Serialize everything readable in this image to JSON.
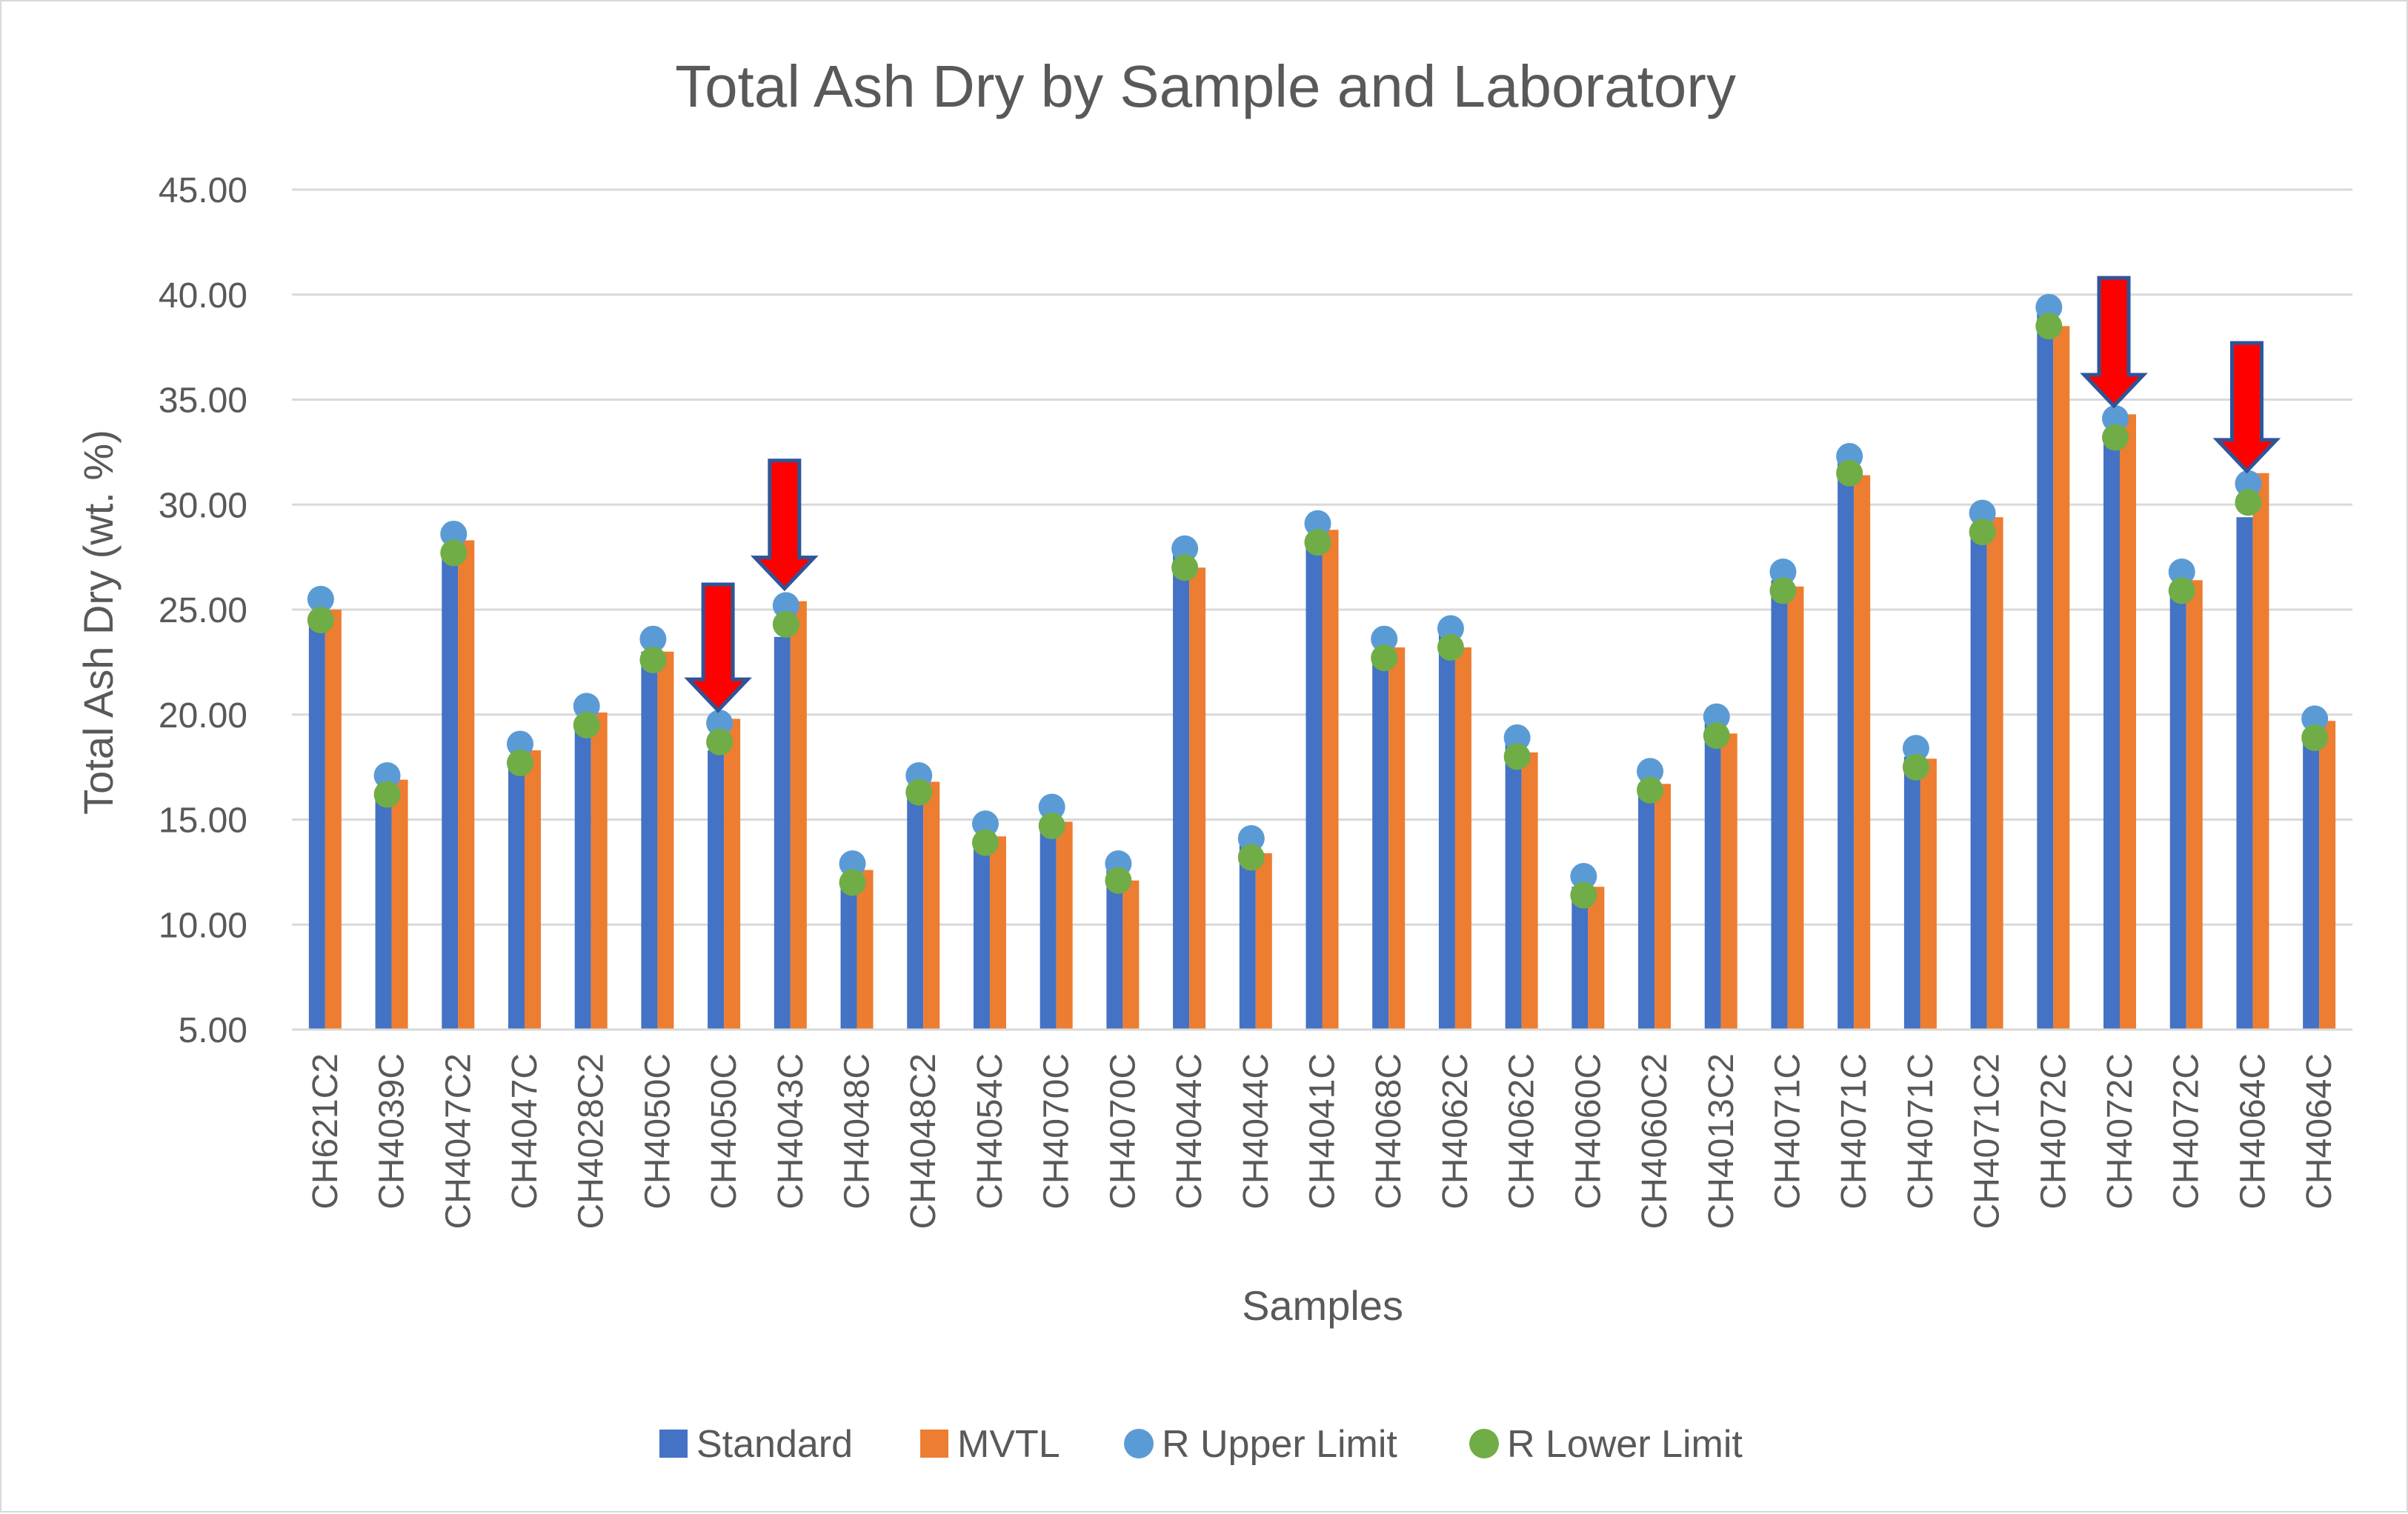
{
  "chart_data": {
    "type": "bar",
    "title": "Total Ash Dry by Sample and Laboratory",
    "xlabel": "Samples",
    "ylabel": "Total Ash Dry (wt. %)",
    "ylim": [
      5,
      45
    ],
    "y_ticks": [
      "5.00",
      "10.00",
      "15.00",
      "20.00",
      "25.00",
      "30.00",
      "35.00",
      "40.00",
      "45.00"
    ],
    "grid": true,
    "legend_position": "bottom",
    "categories": [
      "CH621C2",
      "CH4039C",
      "CH4047C2",
      "CH4047C",
      "CH4028C2",
      "CH4050C",
      "CH4050C",
      "CH4043C",
      "CH4048C",
      "CH4048C2",
      "CH4054C",
      "CH4070C",
      "CH4070C",
      "CH4044C",
      "CH4044C",
      "CH4041C",
      "CH4068C",
      "CH4062C",
      "CH4062C",
      "CH4060C",
      "CH4060C2",
      "CH4013C2",
      "CH4071C",
      "CH4071C",
      "CH4071C",
      "CH4071C2",
      "CH4072C",
      "CH4072C",
      "CH4072C",
      "CH4064C",
      "CH4064C"
    ],
    "series": [
      {
        "name": "Standard",
        "kind": "bar",
        "color": "#4472c4",
        "values": [
          24.5,
          16.1,
          27.9,
          17.7,
          19.6,
          23.0,
          18.3,
          23.7,
          12.0,
          16.3,
          14.1,
          14.8,
          12.8,
          27.7,
          13.8,
          28.4,
          23.0,
          24.0,
          18.6,
          11.8,
          16.7,
          19.6,
          26.4,
          32.1,
          18.0,
          28.7,
          39.1,
          32.9,
          26.2,
          29.4,
          18.9
        ],
        "legend_label": "Standard"
      },
      {
        "name": "MVTL",
        "kind": "bar",
        "color": "#ed7d31",
        "values": [
          25.0,
          16.9,
          28.3,
          18.3,
          20.1,
          23.0,
          19.8,
          25.4,
          12.6,
          16.8,
          14.2,
          14.9,
          12.1,
          27.0,
          13.4,
          28.8,
          23.2,
          23.2,
          18.2,
          11.8,
          16.7,
          19.1,
          26.1,
          31.4,
          17.9,
          29.4,
          38.5,
          34.3,
          26.4,
          31.5,
          19.7
        ],
        "legend_label": "MVTL"
      },
      {
        "name": "R Upper Limit",
        "kind": "marker",
        "color": "#5b9bd5",
        "values": [
          25.5,
          17.1,
          28.6,
          18.6,
          20.4,
          23.6,
          19.6,
          25.2,
          12.9,
          17.1,
          14.8,
          15.6,
          12.9,
          27.9,
          14.1,
          29.1,
          23.6,
          24.1,
          18.9,
          12.3,
          17.3,
          19.9,
          26.8,
          32.3,
          18.4,
          29.6,
          39.4,
          34.1,
          26.8,
          31.0,
          19.8
        ],
        "legend_label": "R Upper Limit"
      },
      {
        "name": "R Lower Limit",
        "kind": "marker",
        "color": "#70ad47",
        "values": [
          24.5,
          16.2,
          27.7,
          17.7,
          19.5,
          22.6,
          18.7,
          24.3,
          12.0,
          16.3,
          13.9,
          14.7,
          12.1,
          27.0,
          13.2,
          28.2,
          22.7,
          23.2,
          18.0,
          11.4,
          16.4,
          19.0,
          25.9,
          31.5,
          17.5,
          28.7,
          38.5,
          33.2,
          25.9,
          30.1,
          18.9
        ],
        "legend_label": "R Lower Limit"
      }
    ],
    "annotations": [
      {
        "type": "arrow-down",
        "color": "#ff0000",
        "category_index": 6,
        "from_value": 26.2,
        "to_value": 20.2
      },
      {
        "type": "arrow-down",
        "color": "#ff0000",
        "category_index": 7,
        "from_value": 32.1,
        "to_value": 26.0
      },
      {
        "type": "arrow-down",
        "color": "#ff0000",
        "category_index": 27,
        "from_value": 40.8,
        "to_value": 34.7
      },
      {
        "type": "arrow-down",
        "color": "#ff0000",
        "category_index": 29,
        "from_value": 37.7,
        "to_value": 31.6
      }
    ]
  }
}
